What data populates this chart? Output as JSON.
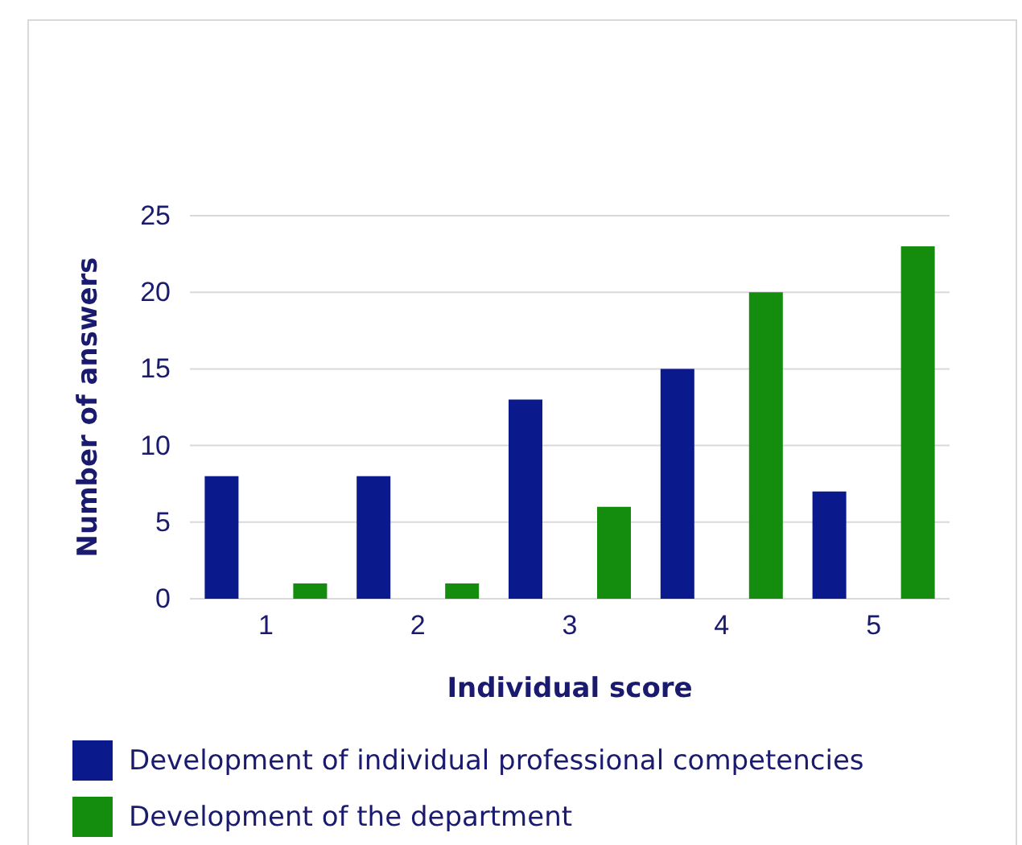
{
  "chart_data": {
    "type": "bar",
    "xlabel": "Individual score",
    "ylabel": "Number of answers",
    "categories": [
      "1",
      "2",
      "3",
      "4",
      "5"
    ],
    "series": [
      {
        "name": "Development of individual professional competencies",
        "color": "#0a1a8c",
        "values": [
          8,
          8,
          13,
          15,
          7
        ]
      },
      {
        "name": "Development of the department",
        "color": "#148c0e",
        "values": [
          1,
          1,
          6,
          20,
          23
        ]
      }
    ],
    "ylim": [
      0,
      25
    ],
    "yticks": [
      0,
      5,
      10,
      15,
      20,
      25
    ],
    "grid": "y",
    "legend": "bottom"
  }
}
